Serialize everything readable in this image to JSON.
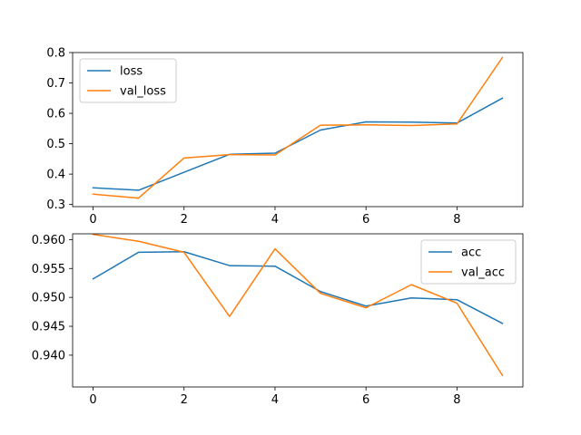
{
  "chart_data": [
    {
      "type": "line",
      "title": "",
      "xlabel": "",
      "ylabel": "",
      "x": [
        0,
        1,
        2,
        3,
        4,
        5,
        6,
        7,
        8,
        9
      ],
      "xlim": [
        -0.45,
        9.45
      ],
      "ylim": [
        0.293,
        0.8
      ],
      "xticks": [
        0,
        2,
        4,
        6,
        8
      ],
      "yticks": [
        0.3,
        0.4,
        0.5,
        0.6,
        0.7,
        0.8
      ],
      "ytick_labels": [
        "0.3",
        "0.4",
        "0.5",
        "0.6",
        "0.7",
        "0.8"
      ],
      "grid": false,
      "legend_position": "upper-left",
      "series": [
        {
          "name": "loss",
          "color": "#1f77b4",
          "values": [
            0.355,
            0.347,
            0.406,
            0.465,
            0.469,
            0.545,
            0.572,
            0.571,
            0.568,
            0.65
          ]
        },
        {
          "name": "val_loss",
          "color": "#ff7f0e",
          "values": [
            0.334,
            0.321,
            0.453,
            0.464,
            0.463,
            0.561,
            0.562,
            0.56,
            0.565,
            0.784
          ]
        }
      ]
    },
    {
      "type": "line",
      "title": "",
      "xlabel": "",
      "ylabel": "",
      "x": [
        0,
        1,
        2,
        3,
        4,
        5,
        6,
        7,
        8,
        9
      ],
      "xlim": [
        -0.45,
        9.45
      ],
      "ylim": [
        0.9345,
        0.961
      ],
      "xticks": [
        0,
        2,
        4,
        6,
        8
      ],
      "yticks": [
        0.94,
        0.945,
        0.95,
        0.955,
        0.96
      ],
      "ytick_labels": [
        "0.940",
        "0.945",
        "0.950",
        "0.955",
        "0.960"
      ],
      "grid": false,
      "legend_position": "upper-right",
      "series": [
        {
          "name": "acc",
          "color": "#1f77b4",
          "values": [
            0.9532,
            0.9578,
            0.9579,
            0.9555,
            0.9554,
            0.951,
            0.9485,
            0.9499,
            0.9496,
            0.9455
          ]
        },
        {
          "name": "val_acc",
          "color": "#ff7f0e",
          "values": [
            0.9609,
            0.9597,
            0.9578,
            0.9467,
            0.9584,
            0.9507,
            0.9482,
            0.9522,
            0.949,
            0.9365
          ]
        }
      ]
    }
  ]
}
